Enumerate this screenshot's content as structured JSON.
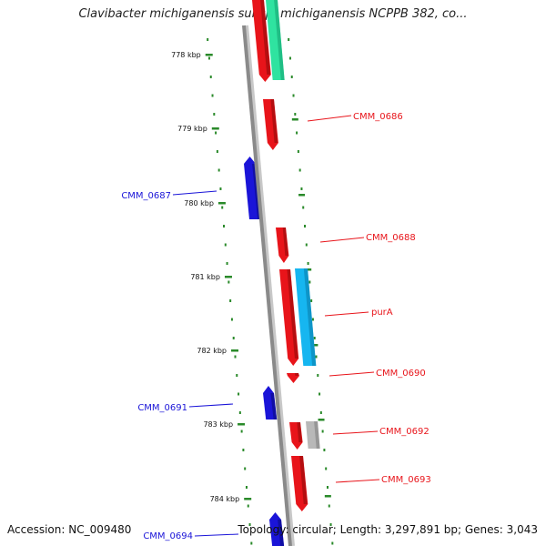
{
  "title": "Clavibacter michiganensis subsp. michiganensis NCPPB 382, co...",
  "footer": {
    "accession": "Accession: NC_009480",
    "info": "Topology: circular; Length: 3,297,891 bp; Genes: 3,043"
  },
  "colors": {
    "forward_gene": "#e8141a",
    "reverse_gene": "#1a14d8",
    "rna_feature": "#2fe3a0",
    "misc_feature": "#16b6f0",
    "pseudo_feature": "#b8b8b8",
    "backbone": "#8a8a8a",
    "tick": "#2a8a2a"
  },
  "ruler": {
    "unit": "kbp",
    "ticks": [
      778,
      779,
      780,
      781,
      782,
      783,
      784
    ],
    "tick_labels": [
      "778 kbp",
      "779 kbp",
      "780 kbp",
      "781 kbp",
      "782 kbp",
      "783 kbp",
      "784 kbp"
    ]
  },
  "genes": [
    {
      "name": "CMM_0686",
      "strand": "+"
    },
    {
      "name": "CMM_0687",
      "strand": "-"
    },
    {
      "name": "CMM_0688",
      "strand": "+"
    },
    {
      "name": "purA",
      "strand": "+"
    },
    {
      "name": "CMM_0690",
      "strand": "+"
    },
    {
      "name": "CMM_0691",
      "strand": "-"
    },
    {
      "name": "CMM_0692",
      "strand": "+"
    },
    {
      "name": "CMM_0693",
      "strand": "+"
    },
    {
      "name": "CMM_0694",
      "strand": "-"
    }
  ]
}
